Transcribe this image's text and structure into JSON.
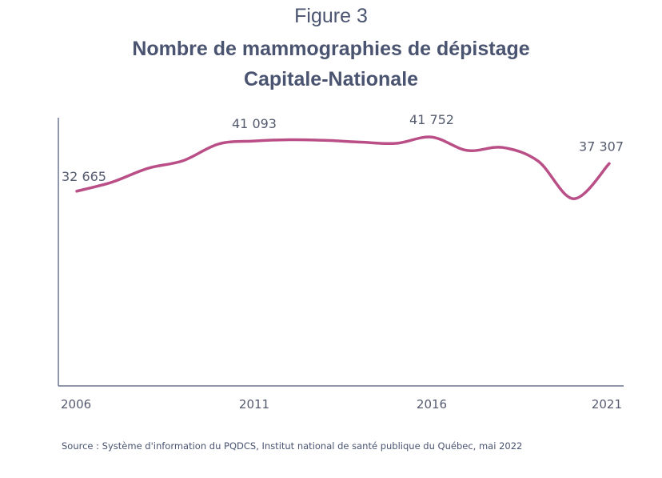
{
  "figure_label": "Figure 3",
  "title_line1": "Nombre de mammographies de dépistage",
  "title_line2": "Capitale-Nationale",
  "source": "Source :  Système d'information du PQDCS, Institut national de santé publique du Québec, mai 2022",
  "colors": {
    "line": "#b94f86",
    "axis": "#6b7490",
    "text": "#4a5470",
    "labels": "#555b6e"
  },
  "chart_data": {
    "type": "line",
    "title": "Nombre de mammographies de dépistage",
    "subtitle": "Capitale-Nationale",
    "xlabel": "",
    "ylabel": "",
    "x_ticks": [
      "2006",
      "2011",
      "2016",
      "2021"
    ],
    "xlim": [
      2006,
      2021
    ],
    "ylim": [
      0,
      45000
    ],
    "grid": false,
    "series": [
      {
        "x": [
          2006,
          2007,
          2008,
          2009,
          2010,
          2011,
          2012,
          2013,
          2014,
          2015,
          2016,
          2017,
          2018,
          2019,
          2020,
          2021
        ],
        "values": [
          32665,
          34200,
          36500,
          37800,
          40600,
          41093,
          41300,
          41200,
          40900,
          40700,
          41752,
          39500,
          40000,
          37700,
          31400,
          37307
        ]
      }
    ],
    "data_labels": [
      {
        "x": 2006,
        "value": 32665,
        "text": "32 665"
      },
      {
        "x": 2011,
        "value": 41093,
        "text": "41 093"
      },
      {
        "x": 2016,
        "value": 41752,
        "text": "41 752"
      },
      {
        "x": 2021,
        "value": 37307,
        "text": "37 307"
      }
    ]
  }
}
